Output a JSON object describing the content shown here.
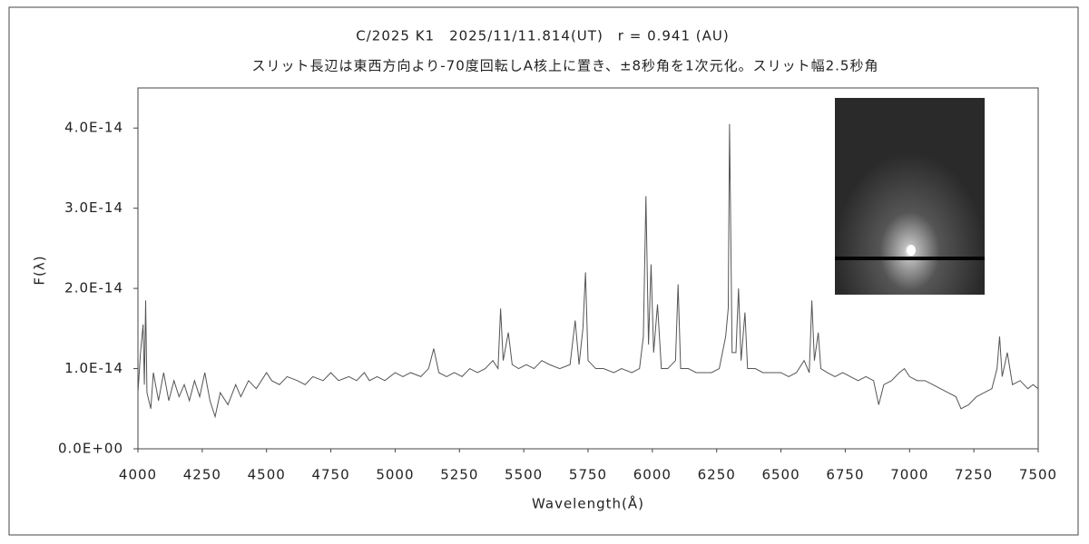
{
  "chart_data": {
    "type": "line",
    "title": "C/2025 K1　2025/11/11.814(UT)　r = 0.941 (AU)",
    "subtitle": "スリット長辺は東西方向より-70度回転しA核上に置き、±8秒角を1次元化。スリット幅2.5秒角",
    "x_label": "Wavelength(Å)",
    "y_label": "F(λ)",
    "xlim": [
      4000,
      7500
    ],
    "xticks": [
      4000,
      4250,
      4500,
      4750,
      5000,
      5250,
      5500,
      5750,
      6000,
      6250,
      6500,
      6750,
      7000,
      7250,
      7500
    ],
    "ylim": [
      0,
      4.5e-14
    ],
    "yticks": [
      {
        "value": 0,
        "label": "0.0E+00"
      },
      {
        "value": 1e-14,
        "label": "1.0E-14"
      },
      {
        "value": 2e-14,
        "label": "2.0E-14"
      },
      {
        "value": 3e-14,
        "label": "3.0E-14"
      },
      {
        "value": 4e-14,
        "label": "4.0E-14"
      }
    ],
    "color": "#555555",
    "x": [
      4000,
      4010,
      4020,
      4025,
      4030,
      4035,
      4050,
      4060,
      4080,
      4100,
      4120,
      4140,
      4160,
      4180,
      4200,
      4220,
      4240,
      4260,
      4280,
      4300,
      4320,
      4350,
      4380,
      4400,
      4430,
      4460,
      4500,
      4520,
      4550,
      4580,
      4620,
      4650,
      4680,
      4720,
      4750,
      4780,
      4820,
      4850,
      4880,
      4900,
      4930,
      4960,
      5000,
      5030,
      5060,
      5100,
      5130,
      5150,
      5170,
      5200,
      5230,
      5260,
      5290,
      5320,
      5350,
      5380,
      5400,
      5410,
      5420,
      5440,
      5455,
      5480,
      5510,
      5540,
      5570,
      5600,
      5640,
      5680,
      5700,
      5715,
      5730,
      5740,
      5750,
      5780,
      5810,
      5850,
      5880,
      5920,
      5950,
      5965,
      5975,
      5985,
      5995,
      6005,
      6020,
      6035,
      6060,
      6090,
      6100,
      6110,
      6140,
      6170,
      6200,
      6230,
      6260,
      6285,
      6295,
      6300,
      6310,
      6325,
      6335,
      6345,
      6360,
      6370,
      6400,
      6430,
      6460,
      6500,
      6530,
      6560,
      6590,
      6610,
      6620,
      6630,
      6645,
      6655,
      6680,
      6710,
      6740,
      6770,
      6800,
      6830,
      6860,
      6880,
      6900,
      6930,
      6960,
      6980,
      7000,
      7030,
      7060,
      7090,
      7120,
      7150,
      7180,
      7200,
      7230,
      7260,
      7290,
      7320,
      7340,
      7350,
      7360,
      7380,
      7400,
      7430,
      7460,
      7480,
      7500
    ],
    "values": [
      7e-15,
      1.2e-14,
      1.55e-14,
      8e-15,
      1.85e-14,
      7e-15,
      5e-15,
      9.5e-15,
      6e-15,
      9.5e-15,
      6e-15,
      8.5e-15,
      6.5e-15,
      8e-15,
      6e-15,
      8.5e-15,
      6.5e-15,
      9.5e-15,
      6e-15,
      4e-15,
      7e-15,
      5.5e-15,
      8e-15,
      6.5e-15,
      8.5e-15,
      7.5e-15,
      9.5e-15,
      8.5e-15,
      8e-15,
      9e-15,
      8.5e-15,
      8e-15,
      9e-15,
      8.5e-15,
      9.5e-15,
      8.5e-15,
      9e-15,
      8.5e-15,
      9.5e-15,
      8.5e-15,
      9e-15,
      8.5e-15,
      9.5e-15,
      9e-15,
      9.5e-15,
      9e-15,
      1e-14,
      1.25e-14,
      9.5e-15,
      9e-15,
      9.5e-15,
      9e-15,
      1e-14,
      9.5e-15,
      1e-14,
      1.1e-14,
      1e-14,
      1.75e-14,
      1.1e-14,
      1.45e-14,
      1.05e-14,
      1e-14,
      1.05e-14,
      1e-14,
      1.1e-14,
      1.05e-14,
      1e-14,
      1.05e-14,
      1.6e-14,
      1.05e-14,
      1.5e-14,
      2.2e-14,
      1.1e-14,
      1e-14,
      1e-14,
      9.5e-15,
      1e-14,
      9.5e-15,
      1e-14,
      1.4e-14,
      3.15e-14,
      1.3e-14,
      2.3e-14,
      1.2e-14,
      1.8e-14,
      1e-14,
      1e-14,
      1.1e-14,
      2.05e-14,
      1e-14,
      1e-14,
      9.5e-15,
      9.5e-15,
      9.5e-15,
      1e-14,
      1.4e-14,
      1.75e-14,
      4.05e-14,
      1.2e-14,
      1.2e-14,
      2e-14,
      1.1e-14,
      1.7e-14,
      1e-14,
      1e-14,
      9.5e-15,
      9.5e-15,
      9.5e-15,
      9e-15,
      9.5e-15,
      1.1e-14,
      9.5e-15,
      1.85e-14,
      1.1e-14,
      1.45e-14,
      1e-14,
      9.5e-15,
      9e-15,
      9.5e-15,
      9e-15,
      8.5e-15,
      9e-15,
      8.5e-15,
      5.5e-15,
      8e-15,
      8.5e-15,
      9.5e-15,
      1e-14,
      9e-15,
      8.5e-15,
      8.5e-15,
      8e-15,
      7.5e-15,
      7e-15,
      6.5e-15,
      5e-15,
      5.5e-15,
      6.5e-15,
      7e-15,
      7.5e-15,
      1e-14,
      1.4e-14,
      9e-15,
      1.2e-14,
      8e-15,
      8.5e-15,
      7.5e-15,
      8e-15,
      7.5e-15
    ]
  }
}
